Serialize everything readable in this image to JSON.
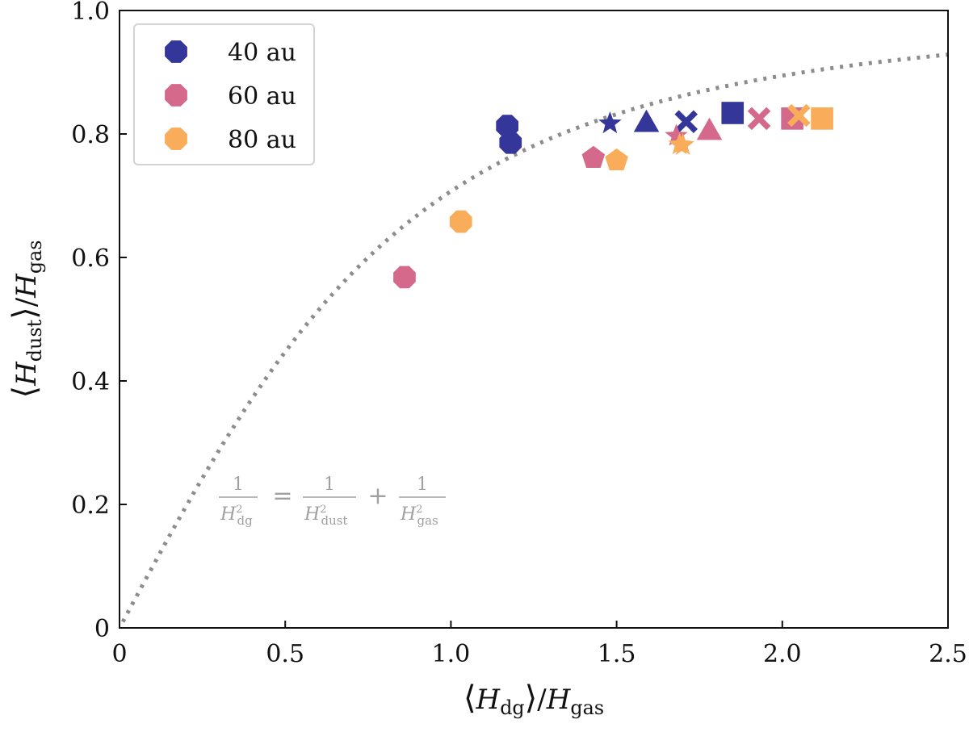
{
  "chart_data": {
    "type": "scatter",
    "xlabel_parts": [
      "⟨",
      "H",
      "dg",
      "⟩",
      "/",
      "H",
      "gas"
    ],
    "ylabel_parts": [
      "⟨",
      "H",
      "dust",
      "⟩",
      "/",
      "H",
      "gas"
    ],
    "xlim": [
      0,
      2.5
    ],
    "ylim": [
      0,
      1.0
    ],
    "x_ticks": [
      {
        "value": 0,
        "label": "0"
      },
      {
        "value": 0.5,
        "label": "0.5"
      },
      {
        "value": 1.0,
        "label": "1.0"
      },
      {
        "value": 1.5,
        "label": "1.5"
      },
      {
        "value": 2.0,
        "label": "2.0"
      },
      {
        "value": 2.5,
        "label": "2.5"
      }
    ],
    "y_ticks": [
      {
        "value": 0,
        "label": "0"
      },
      {
        "value": 0.2,
        "label": "0.2"
      },
      {
        "value": 0.4,
        "label": "0.4"
      },
      {
        "value": 0.6,
        "label": "0.6"
      },
      {
        "value": 0.8,
        "label": "0.8"
      },
      {
        "value": 1.0,
        "label": "1.0"
      }
    ],
    "grid": false,
    "legend_position": "top-left",
    "curve": {
      "style": "dotted",
      "color": "#8c8c8c",
      "relation": "1/H_dg^2 = 1/H_dust^2 + 1/H_gas^2"
    },
    "annotation": {
      "lhs_num": "1",
      "lhs_den_base": "H",
      "lhs_den_sub": "dg",
      "lhs_den_sup": "2",
      "eq": "=",
      "r1_num": "1",
      "r1_den_base": "H",
      "r1_den_sub": "dust",
      "r1_den_sup": "2",
      "plus": "+",
      "r2_num": "1",
      "r2_den_base": "H",
      "r2_den_sub": "gas",
      "r2_den_sup": "2"
    },
    "series": [
      {
        "name": "40 au",
        "color": "#35369a",
        "points": [
          {
            "x": 1.17,
            "y": 0.813,
            "marker": "octagon"
          },
          {
            "x": 1.18,
            "y": 0.786,
            "marker": "octagon"
          },
          {
            "x": 1.48,
            "y": 0.817,
            "marker": "star"
          },
          {
            "x": 1.59,
            "y": 0.819,
            "marker": "triangle"
          },
          {
            "x": 1.71,
            "y": 0.82,
            "marker": "x"
          },
          {
            "x": 1.85,
            "y": 0.834,
            "marker": "square"
          }
        ]
      },
      {
        "name": "60 au",
        "color": "#d4698b",
        "points": [
          {
            "x": 0.86,
            "y": 0.568,
            "marker": "octagon"
          },
          {
            "x": 1.43,
            "y": 0.761,
            "marker": "pentagon"
          },
          {
            "x": 1.68,
            "y": 0.797,
            "marker": "star"
          },
          {
            "x": 1.78,
            "y": 0.806,
            "marker": "triangle"
          },
          {
            "x": 1.93,
            "y": 0.825,
            "marker": "x"
          },
          {
            "x": 2.03,
            "y": 0.825,
            "marker": "square"
          }
        ]
      },
      {
        "name": "80 au",
        "color": "#f9ad5a",
        "points": [
          {
            "x": 1.03,
            "y": 0.658,
            "marker": "octagon"
          },
          {
            "x": 1.5,
            "y": 0.757,
            "marker": "pentagon"
          },
          {
            "x": 1.69,
            "y": 0.783,
            "marker": "star"
          },
          {
            "x": 1.7,
            "y": 0.782,
            "marker": "star"
          },
          {
            "x": 2.05,
            "y": 0.83,
            "marker": "x"
          },
          {
            "x": 2.12,
            "y": 0.825,
            "marker": "square"
          }
        ]
      }
    ]
  }
}
